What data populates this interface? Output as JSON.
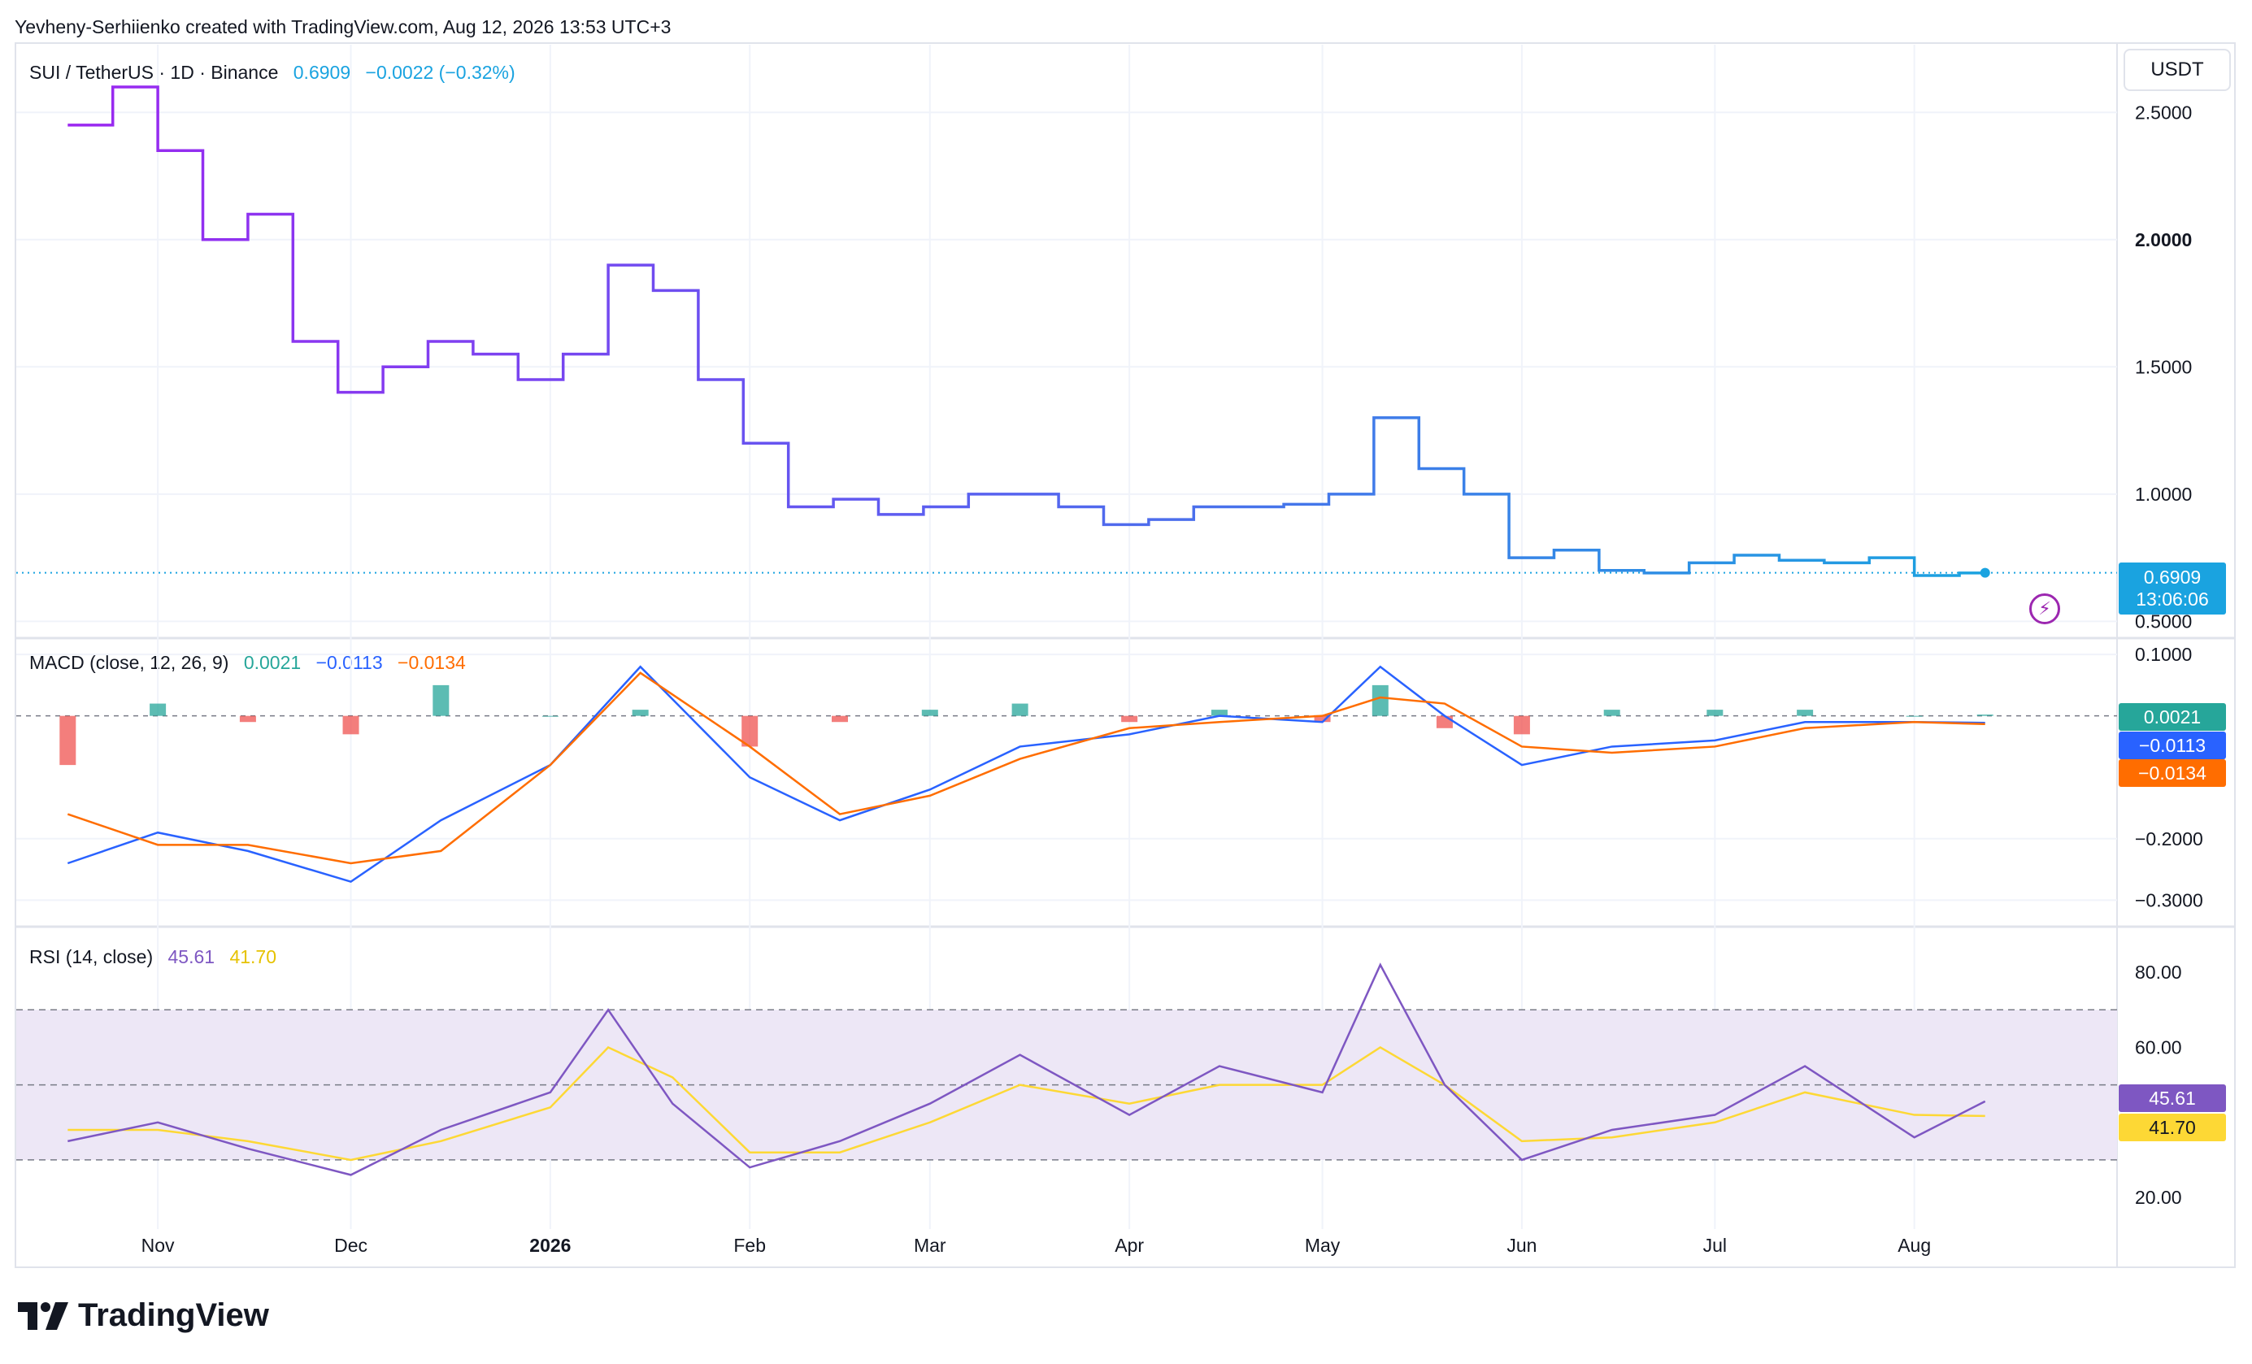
{
  "header": {
    "credit": "Yevheny-Serhiienko created with TradingView.com, Aug 12, 2026 13:53 UTC+3"
  },
  "price_pane": {
    "symbol": "SUI / TetherUS · 1D · Binance",
    "last": "0.6909",
    "change": "−0.0022 (−0.32%)",
    "unit": "USDT",
    "ticks": [
      "2.5000",
      "2.0000",
      "1.5000",
      "1.0000",
      "0.5000"
    ],
    "tag_price": "0.6909",
    "tag_countdown": "13:06:06",
    "colors": {
      "line_start": "#9c27f0",
      "line_mid": "#5b5ef0",
      "line_end": "#1aa3e0",
      "tag": "#1aa3e0"
    }
  },
  "macd_pane": {
    "title": "MACD (close, 12, 26, 9)",
    "hist": "0.0021",
    "macd": "−0.0113",
    "signal": "−0.0134",
    "ticks": [
      "0.1000",
      "−0.2000",
      "−0.3000"
    ],
    "colors": {
      "macd": "#2962ff",
      "signal": "#ff6d00",
      "hist_up": "#26a69a",
      "hist_down": "#ef5350"
    }
  },
  "rsi_pane": {
    "title": "RSI (14, close)",
    "rsi": "45.61",
    "rsi_ma": "41.70",
    "ticks": [
      "80.00",
      "60.00",
      "20.00"
    ],
    "colors": {
      "rsi": "#7e57c2",
      "ma": "#fdd835",
      "band": "#ede7f6"
    }
  },
  "x_axis": {
    "labels": [
      "Nov",
      "Dec",
      "2026",
      "Feb",
      "Mar",
      "Apr",
      "May",
      "Jun",
      "Jul",
      "Aug"
    ]
  },
  "footer": {
    "logo_text": "TradingView",
    "logo_icon": "tradingview-logo-icon"
  },
  "chart_data": [
    {
      "type": "line",
      "title": "SUI / TetherUS · 1D · Binance",
      "ylabel": "USDT",
      "ylim": [
        0.5,
        2.7
      ],
      "x": [
        "2025-10-18",
        "2025-10-25",
        "2025-11-01",
        "2025-11-08",
        "2025-11-15",
        "2025-11-22",
        "2025-11-29",
        "2025-12-06",
        "2025-12-13",
        "2025-12-20",
        "2025-12-27",
        "2026-01-03",
        "2026-01-10",
        "2026-01-17",
        "2026-01-24",
        "2026-01-31",
        "2026-02-07",
        "2026-02-14",
        "2026-02-21",
        "2026-02-28",
        "2026-03-07",
        "2026-03-14",
        "2026-03-21",
        "2026-03-28",
        "2026-04-04",
        "2026-04-11",
        "2026-04-18",
        "2026-04-25",
        "2026-05-02",
        "2026-05-09",
        "2026-05-16",
        "2026-05-23",
        "2026-05-30",
        "2026-06-06",
        "2026-06-13",
        "2026-06-20",
        "2026-06-27",
        "2026-07-04",
        "2026-07-11",
        "2026-07-18",
        "2026-07-25",
        "2026-08-01",
        "2026-08-08",
        "2026-08-12"
      ],
      "series": [
        {
          "name": "SUI / TetherUS",
          "values": [
            2.45,
            2.6,
            2.35,
            2.0,
            2.1,
            1.6,
            1.4,
            1.5,
            1.6,
            1.55,
            1.45,
            1.55,
            1.9,
            1.8,
            1.45,
            1.2,
            0.95,
            0.98,
            0.92,
            0.95,
            1.0,
            1.0,
            0.95,
            0.88,
            0.9,
            0.95,
            0.95,
            0.96,
            1.0,
            1.3,
            1.1,
            1.0,
            0.75,
            0.78,
            0.7,
            0.69,
            0.73,
            0.76,
            0.74,
            0.73,
            0.75,
            0.68,
            0.69,
            0.6909
          ]
        }
      ]
    },
    {
      "type": "line",
      "title": "MACD (close, 12, 26, 9)",
      "ylim": [
        -0.3,
        0.1
      ],
      "x": [
        "2025-10-18",
        "2025-11-01",
        "2025-11-15",
        "2025-12-01",
        "2025-12-15",
        "2026-01-01",
        "2026-01-15",
        "2026-02-01",
        "2026-02-15",
        "2026-03-01",
        "2026-03-15",
        "2026-04-01",
        "2026-04-15",
        "2026-05-01",
        "2026-05-10",
        "2026-05-20",
        "2026-06-01",
        "2026-06-15",
        "2026-07-01",
        "2026-07-15",
        "2026-08-01",
        "2026-08-12"
      ],
      "series": [
        {
          "name": "MACD",
          "values": [
            -0.24,
            -0.19,
            -0.22,
            -0.27,
            -0.17,
            -0.08,
            0.08,
            -0.1,
            -0.17,
            -0.12,
            -0.05,
            -0.03,
            0.0,
            -0.01,
            0.08,
            0.0,
            -0.08,
            -0.05,
            -0.04,
            -0.01,
            -0.01,
            -0.0113
          ]
        },
        {
          "name": "Signal",
          "values": [
            -0.16,
            -0.21,
            -0.21,
            -0.24,
            -0.22,
            -0.08,
            0.07,
            -0.05,
            -0.16,
            -0.13,
            -0.07,
            -0.02,
            -0.01,
            0.0,
            0.03,
            0.02,
            -0.05,
            -0.06,
            -0.05,
            -0.02,
            -0.01,
            -0.0134
          ]
        },
        {
          "name": "Histogram",
          "values": [
            -0.08,
            0.02,
            -0.01,
            -0.03,
            0.05,
            0.0,
            0.01,
            -0.05,
            -0.01,
            0.01,
            0.02,
            -0.01,
            0.01,
            -0.01,
            0.05,
            -0.02,
            -0.03,
            0.01,
            0.01,
            0.01,
            0.0,
            0.0021
          ]
        }
      ]
    },
    {
      "type": "line",
      "title": "RSI (14, close)",
      "ylim": [
        20,
        85
      ],
      "bands": [
        30,
        50,
        70
      ],
      "x": [
        "2025-10-18",
        "2025-11-01",
        "2025-11-15",
        "2025-12-01",
        "2025-12-15",
        "2026-01-01",
        "2026-01-10",
        "2026-01-20",
        "2026-02-01",
        "2026-02-15",
        "2026-03-01",
        "2026-03-15",
        "2026-04-01",
        "2026-04-15",
        "2026-05-01",
        "2026-05-10",
        "2026-05-20",
        "2026-06-01",
        "2026-06-15",
        "2026-07-01",
        "2026-07-15",
        "2026-08-01",
        "2026-08-12"
      ],
      "series": [
        {
          "name": "RSI",
          "values": [
            35,
            40,
            33,
            26,
            38,
            48,
            70,
            45,
            28,
            35,
            45,
            58,
            42,
            55,
            48,
            82,
            50,
            30,
            38,
            42,
            55,
            36,
            45.61
          ]
        },
        {
          "name": "RSI MA",
          "values": [
            38,
            38,
            35,
            30,
            35,
            44,
            60,
            52,
            32,
            32,
            40,
            50,
            45,
            50,
            50,
            60,
            50,
            35,
            36,
            40,
            48,
            42,
            41.7
          ]
        }
      ]
    }
  ]
}
